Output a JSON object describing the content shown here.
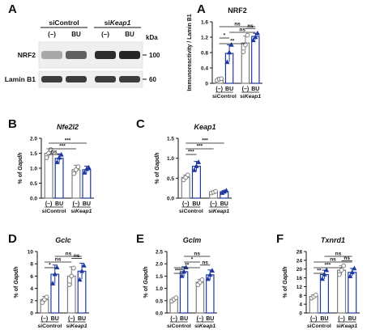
{
  "colors": {
    "control": "#7f7f7f",
    "treat": "#1f3aa0",
    "axis": "#111111",
    "band_dark": "#2a2a2a"
  },
  "panel_A": {
    "letter": "A",
    "blot": {
      "group_labels": [
        "siControl",
        "siKeap1"
      ],
      "group_prefix": "si",
      "group_gene_italic": "Keap1",
      "lane_labels": [
        "(–)",
        "BU",
        "(–)",
        "BU"
      ],
      "kda_label": "kDa",
      "rows": [
        {
          "name": "NRF2",
          "kda": "100",
          "intensity": [
            0.3,
            0.62,
            0.85,
            0.88
          ]
        },
        {
          "name": "Lamin B1",
          "kda": "60",
          "intensity": [
            0.78,
            0.78,
            0.78,
            0.78
          ]
        }
      ]
    }
  },
  "chart_data": [
    {
      "panel": "A",
      "type": "bar",
      "title": "NRF2",
      "title_italic": false,
      "ylabel": "Immunoreactivity / Lamin B1",
      "ylabel_italic": "",
      "ylim": [
        0,
        1.6
      ],
      "yticks": [
        "0",
        "0.4",
        "0.8",
        "1.2",
        "1.6"
      ],
      "categories": [
        "(–)",
        "BU",
        "(–)",
        "BU"
      ],
      "groups": [
        "siControl",
        "siKeap1"
      ],
      "values": [
        0.1,
        0.78,
        1.05,
        1.22
      ],
      "errors": [
        0.05,
        0.22,
        0.18,
        0.08
      ],
      "points": [
        [
          0.08,
          0.11,
          0.12
        ],
        [
          0.55,
          0.8,
          1.0
        ],
        [
          0.82,
          1.0,
          1.25
        ],
        [
          1.12,
          1.2,
          1.3
        ]
      ],
      "sig": [
        {
          "from": 0,
          "to": 1,
          "label": "*",
          "level": 2
        },
        {
          "from": 0,
          "to": 2,
          "label": "**",
          "level": 1
        },
        {
          "from": 0,
          "to": 3,
          "label": "ns",
          "level": 4
        },
        {
          "from": 1,
          "to": 3,
          "label": "ns",
          "level": 3
        },
        {
          "from": 2,
          "to": 3,
          "label": "ns",
          "level": 0
        }
      ]
    },
    {
      "panel": "B",
      "type": "bar",
      "title": "Nfe2l2",
      "title_italic": true,
      "ylabel": "% of Gapdh",
      "ylabel_italic": "Gapdh",
      "ylim": [
        0,
        2.0
      ],
      "yticks": [
        "0.0",
        "0.5",
        "1.0",
        "1.5",
        "2.0"
      ],
      "categories": [
        "(–)",
        "BU",
        "(–)",
        "BU"
      ],
      "groups": [
        "siControl",
        "siKeap1"
      ],
      "values": [
        1.5,
        1.33,
        0.95,
        0.95
      ],
      "errors": [
        0.15,
        0.15,
        0.15,
        0.12
      ],
      "points": [
        [
          1.35,
          1.5,
          1.62
        ],
        [
          1.2,
          1.35,
          1.45
        ],
        [
          0.82,
          0.95,
          1.05
        ],
        [
          0.85,
          0.97,
          1.02
        ]
      ],
      "sig": [
        {
          "from": 0,
          "to": 1,
          "label": "ns",
          "level": 0
        },
        {
          "from": 0,
          "to": 2,
          "label": "***",
          "level": 1
        },
        {
          "from": 0,
          "to": 3,
          "label": "***",
          "level": 2
        }
      ]
    },
    {
      "panel": "C",
      "type": "bar",
      "title": "Keap1",
      "title_italic": true,
      "ylabel": "% of Gapdh",
      "ylabel_italic": "Gapdh",
      "ylim": [
        0,
        1.5
      ],
      "yticks": [
        "0.0",
        "0.5",
        "1.0",
        "1.5"
      ],
      "categories": [
        "(–)",
        "BU",
        "(–)",
        "BU"
      ],
      "groups": [
        "siControl",
        "siKeap1"
      ],
      "values": [
        0.52,
        0.8,
        0.15,
        0.16
      ],
      "errors": [
        0.06,
        0.12,
        0.02,
        0.03
      ],
      "points": [
        [
          0.46,
          0.52,
          0.58
        ],
        [
          0.7,
          0.8,
          0.9
        ],
        [
          0.13,
          0.15,
          0.17
        ],
        [
          0.13,
          0.16,
          0.19
        ]
      ],
      "sig": [
        {
          "from": 0,
          "to": 1,
          "label": "***",
          "level": 0
        },
        {
          "from": 0,
          "to": 2,
          "label": "***",
          "level": 1
        },
        {
          "from": 0,
          "to": 3,
          "label": "***",
          "level": 2
        }
      ]
    },
    {
      "panel": "D",
      "type": "bar",
      "title": "Gclc",
      "title_italic": true,
      "ylabel": "% of Gapdh",
      "ylabel_italic": "Gapdh",
      "ylim": [
        0,
        10
      ],
      "yticks": [
        "0",
        "2",
        "4",
        "6",
        "8",
        "10"
      ],
      "categories": [
        "(–)",
        "BU",
        "(–)",
        "BU"
      ],
      "groups": [
        "siControl",
        "siKeap1"
      ],
      "values": [
        2.2,
        6.3,
        6.0,
        6.8
      ],
      "errors": [
        0.5,
        1.5,
        1.5,
        1.3
      ],
      "points": [
        [
          1.7,
          2.2,
          2.6
        ],
        [
          4.8,
          6.3,
          7.4
        ],
        [
          4.6,
          6.0,
          7.3
        ],
        [
          5.4,
          6.8,
          7.7
        ]
      ],
      "sig": [
        {
          "from": 0,
          "to": 1,
          "label": "*",
          "level": 0
        },
        {
          "from": 0,
          "to": 2,
          "label": "ns",
          "level": 1
        },
        {
          "from": 1,
          "to": 3,
          "label": "ns",
          "level": 2
        },
        {
          "from": 2,
          "to": 3,
          "label": "ns",
          "level": 0
        }
      ]
    },
    {
      "panel": "E",
      "type": "bar",
      "title": "Gclm",
      "title_italic": true,
      "ylabel": "% of Gapdh",
      "ylabel_italic": "Gapdh",
      "ylim": [
        0,
        2.5
      ],
      "yticks": [
        "0.0",
        "0.5",
        "1.0",
        "1.5",
        "2.0",
        "2.5"
      ],
      "categories": [
        "(–)",
        "BU",
        "(–)",
        "BU"
      ],
      "groups": [
        "siControl",
        "siKeap1"
      ],
      "values": [
        0.55,
        1.68,
        1.25,
        1.55
      ],
      "errors": [
        0.07,
        0.2,
        0.12,
        0.2
      ],
      "points": [
        [
          0.48,
          0.55,
          0.62
        ],
        [
          1.5,
          1.68,
          1.85
        ],
        [
          1.15,
          1.25,
          1.35
        ],
        [
          1.38,
          1.55,
          1.72
        ]
      ],
      "sig": [
        {
          "from": 0,
          "to": 1,
          "label": "****",
          "level": 0
        },
        {
          "from": 0,
          "to": 2,
          "label": "**",
          "level": 1
        },
        {
          "from": 1,
          "to": 2,
          "label": "*",
          "level": 2
        },
        {
          "from": 1,
          "to": 3,
          "label": "ns",
          "level": 3
        },
        {
          "from": 2,
          "to": 3,
          "label": "ns",
          "level": 0
        }
      ]
    },
    {
      "panel": "F",
      "type": "bar",
      "title": "Txnrd1",
      "title_italic": true,
      "ylabel": "% of Gapdh",
      "ylabel_italic": "Gapdh",
      "ylim": [
        0,
        28
      ],
      "yticks": [
        "0",
        "4",
        "8",
        "12",
        "16",
        "20",
        "24",
        "28"
      ],
      "categories": [
        "(–)",
        "BU",
        "(–)",
        "BU"
      ],
      "groups": [
        "siControl",
        "siKeap1"
      ],
      "values": [
        7.5,
        17.5,
        19.5,
        18.5
      ],
      "errors": [
        0.8,
        2.0,
        2.0,
        1.8
      ],
      "points": [
        [
          6.8,
          7.5,
          8.2
        ],
        [
          15.5,
          17.5,
          19.5
        ],
        [
          17.5,
          19.5,
          21.5
        ],
        [
          16.7,
          18.5,
          20.3
        ]
      ],
      "sig": [
        {
          "from": 0,
          "to": 1,
          "label": "**",
          "level": 0
        },
        {
          "from": 0,
          "to": 2,
          "label": "***",
          "level": 1
        },
        {
          "from": 0,
          "to": 3,
          "label": "ns",
          "level": 2
        },
        {
          "from": 1,
          "to": 3,
          "label": "ns",
          "level": 3
        },
        {
          "from": 2,
          "to": 3,
          "label": "ns",
          "level": 0
        }
      ]
    }
  ]
}
